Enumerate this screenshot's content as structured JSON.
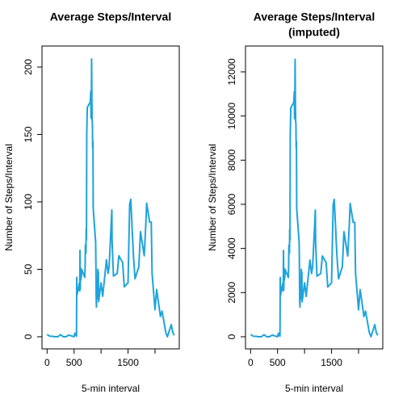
{
  "chart_data": [
    {
      "type": "line",
      "title": [
        "Average Steps/Interval"
      ],
      "xlabel": "5-min interval",
      "ylabel": "Number of Steps/Interval",
      "x": [
        0,
        50,
        100,
        150,
        200,
        250,
        300,
        350,
        400,
        450,
        500,
        515,
        530,
        540,
        545,
        550,
        555,
        600,
        605,
        610,
        615,
        620,
        625,
        630,
        635,
        640,
        700,
        705,
        710,
        715,
        720,
        725,
        730,
        735,
        740,
        745,
        800,
        805,
        810,
        815,
        820,
        825,
        830,
        835,
        840,
        845,
        850,
        855,
        900,
        905,
        910,
        915,
        920,
        925,
        930,
        935,
        940,
        945,
        950,
        955,
        1000,
        1030,
        1100,
        1130,
        1150,
        1200,
        1205,
        1230,
        1300,
        1330,
        1400,
        1430,
        1500,
        1530,
        1550,
        1600,
        1630,
        1700,
        1730,
        1800,
        1830,
        1845,
        1900,
        1930,
        1945,
        2000,
        2030,
        2100,
        2130,
        2200,
        2230,
        2300,
        2330,
        2355
      ],
      "series": [
        {
          "color": "#1fa3dc",
          "values": [
            1.7,
            0.4,
            0.3,
            0,
            0,
            1.5,
            0,
            0,
            1.2,
            0.6,
            0,
            2.5,
            1,
            3.1,
            0.4,
            44,
            31,
            40,
            34,
            64,
            35,
            51,
            42,
            46,
            44,
            50,
            44,
            52,
            68,
            68,
            62,
            80,
            72,
            150,
            160,
            170,
            174,
            178,
            182,
            162,
            171,
            206,
            177,
            160,
            158,
            140,
            145,
            95,
            70,
            53,
            27,
            22,
            34,
            28,
            42,
            32,
            50,
            32,
            48,
            26,
            40,
            30,
            57,
            47,
            52,
            94,
            70,
            45,
            47,
            60,
            55,
            37,
            40,
            98,
            102,
            60,
            43,
            52,
            78,
            60,
            84,
            99,
            85,
            85,
            47,
            20,
            35,
            15,
            19,
            3,
            0,
            9,
            3,
            1
          ]
        }
      ],
      "xlim": [
        -94,
        2449
      ],
      "xticks": [
        0,
        500,
        {
          "value": 1000,
          "label": null
        },
        1500,
        {
          "value": 2000,
          "label": null
        }
      ],
      "ylim": [
        -9,
        215.6
      ],
      "yticks": [
        0,
        50,
        100,
        150,
        200
      ]
    },
    {
      "type": "line",
      "title": [
        "Average Steps/Interval",
        "(imputed)"
      ],
      "xlabel": "5-min interval",
      "ylabel": "Number of Steps/Interval",
      "x": [
        0,
        50,
        100,
        150,
        200,
        250,
        300,
        350,
        400,
        450,
        500,
        515,
        530,
        540,
        545,
        550,
        555,
        600,
        605,
        610,
        615,
        620,
        625,
        630,
        635,
        640,
        700,
        705,
        710,
        715,
        720,
        725,
        730,
        735,
        740,
        745,
        800,
        805,
        810,
        815,
        820,
        825,
        830,
        835,
        840,
        845,
        850,
        855,
        900,
        905,
        910,
        915,
        920,
        925,
        930,
        935,
        940,
        945,
        950,
        955,
        1000,
        1030,
        1100,
        1130,
        1150,
        1200,
        1205,
        1230,
        1300,
        1330,
        1400,
        1430,
        1500,
        1530,
        1550,
        1600,
        1630,
        1700,
        1730,
        1800,
        1830,
        1845,
        1900,
        1930,
        1945,
        2000,
        2030,
        2100,
        2130,
        2200,
        2230,
        2300,
        2330,
        2355
      ],
      "series": [
        {
          "color": "#1fa3dc",
          "values": [
            104,
            24,
            18,
            0,
            0,
            92,
            0,
            0,
            73,
            37,
            0,
            153,
            61,
            189,
            24,
            2684,
            1891,
            2440,
            2074,
            3904,
            2135,
            3111,
            2562,
            2806,
            2684,
            3050,
            2684,
            3172,
            4148,
            4148,
            3782,
            4880,
            4392,
            9150,
            9760,
            10370,
            10614,
            10858,
            11102,
            9882,
            10431,
            12566,
            10797,
            9760,
            9638,
            8540,
            8845,
            5795,
            4270,
            3233,
            1647,
            1342,
            2074,
            1708,
            2562,
            1952,
            3050,
            1952,
            2928,
            1586,
            2440,
            1830,
            3477,
            2867,
            3172,
            5734,
            4270,
            2745,
            2867,
            3660,
            3355,
            2257,
            2440,
            5978,
            6222,
            3660,
            2623,
            3172,
            4758,
            3660,
            5124,
            6039,
            5185,
            5185,
            2867,
            1220,
            2135,
            915,
            1159,
            183,
            0,
            549,
            183,
            61
          ]
        }
      ],
      "xlim": [
        -94,
        2449
      ],
      "xticks": [
        0,
        500,
        {
          "value": 1000,
          "label": null
        },
        1500,
        {
          "value": 2000,
          "label": null
        }
      ],
      "ylim": [
        -549,
        13170
      ],
      "yticks": [
        0,
        2000,
        4000,
        6000,
        8000,
        10000,
        12000
      ]
    }
  ]
}
